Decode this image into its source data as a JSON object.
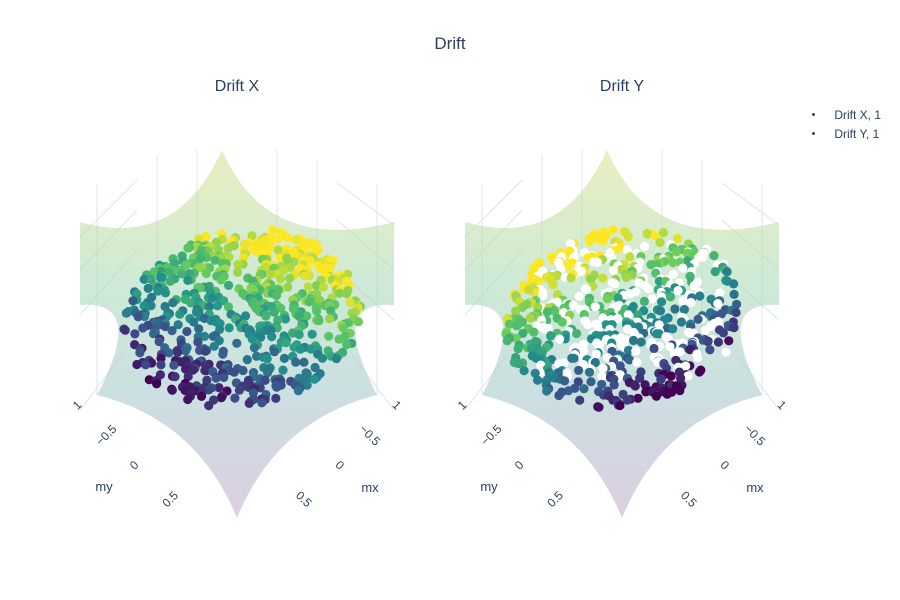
{
  "title": "Drift",
  "legend": [
    {
      "label": "Drift X, 1"
    },
    {
      "label": "Drift Y, 1"
    }
  ],
  "chart_data": [
    {
      "type": "scatter",
      "title": "Drift X",
      "surface": "saddle",
      "colorscale": "viridis",
      "surface_opacity": 0.35,
      "axes": {
        "x": {
          "label": "mx",
          "ticks": [
            "1",
            "−0.5",
            "0",
            "0.5"
          ]
        },
        "y": {
          "label": "my",
          "ticks": [
            "1",
            "−0.5",
            "0",
            "0.5"
          ]
        }
      },
      "points": "disk of samples over mx, my ∈ [−1, 1], colored by drift value"
    },
    {
      "type": "scatter",
      "title": "Drift Y",
      "surface": "saddle",
      "colorscale": "viridis",
      "surface_opacity": 0.35,
      "axes": {
        "x": {
          "label": "mx",
          "ticks": [
            "1",
            "−0.5",
            "0",
            "0.5"
          ]
        },
        "y": {
          "label": "my",
          "ticks": [
            "1",
            "−0.5",
            "0",
            "0.5"
          ]
        }
      },
      "points": "disk of samples over mx, my ∈ [−1, 1], colored by drift value; white points mark samples without value"
    }
  ]
}
